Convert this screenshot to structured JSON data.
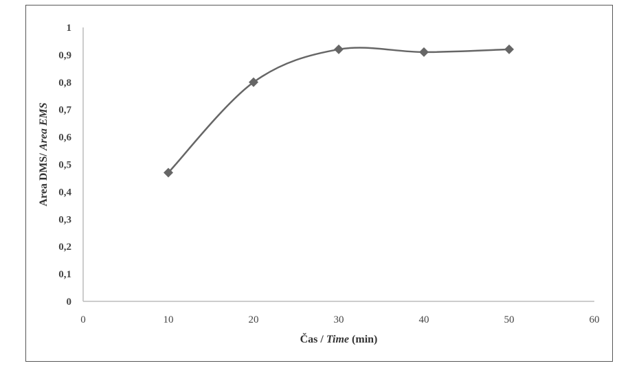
{
  "chart_data": {
    "type": "line",
    "smooth": true,
    "marker": "diamond",
    "color": "#666666",
    "x": [
      10,
      20,
      30,
      40,
      50
    ],
    "series": [
      {
        "values": [
          0.47,
          0.8,
          0.92,
          0.91,
          0.92
        ]
      }
    ],
    "xlabel_parts": [
      "Čas / ",
      "Time",
      " (min)"
    ],
    "ylabel_parts": [
      "Area DMS/ ",
      "Area EMS"
    ],
    "xlim": [
      0,
      60
    ],
    "ylim": [
      0,
      1
    ],
    "xticks": [
      "0",
      "10",
      "20",
      "30",
      "40",
      "50",
      "60"
    ],
    "yticks": [
      "0",
      "0,1",
      "0,2",
      "0,3",
      "0,4",
      "0,5",
      "0,6",
      "0,7",
      "0,8",
      "0,9",
      "1"
    ],
    "grid": false,
    "legend": "none"
  }
}
